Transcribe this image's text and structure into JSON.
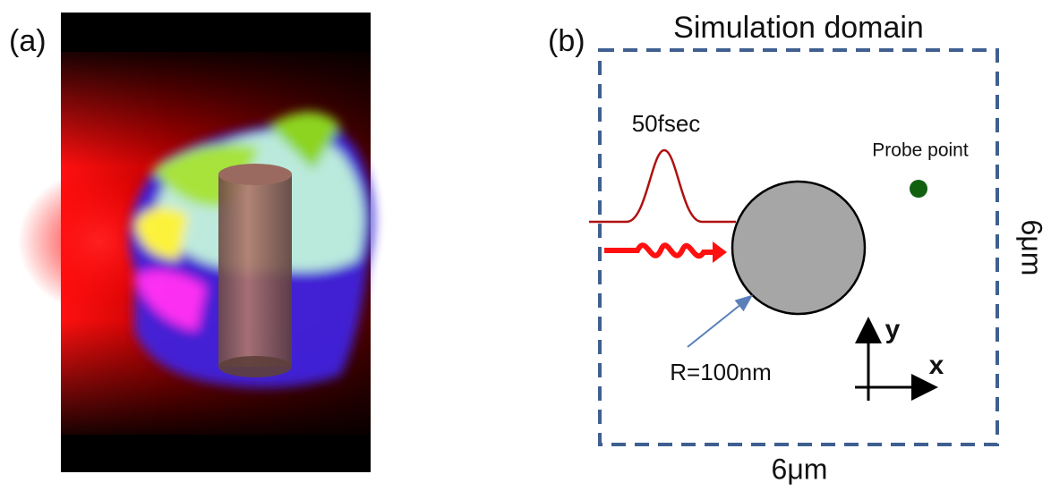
{
  "panel_a": {
    "label": "(a)"
  },
  "panel_b": {
    "label": "(b)",
    "title": "Simulation domain",
    "pulse_label": "50fsec",
    "probe_label": "Probe point",
    "radius_label": "R=100nm",
    "axis_y": "y",
    "axis_x": "x",
    "width_label": "6μm",
    "height_label": "6μm"
  }
}
